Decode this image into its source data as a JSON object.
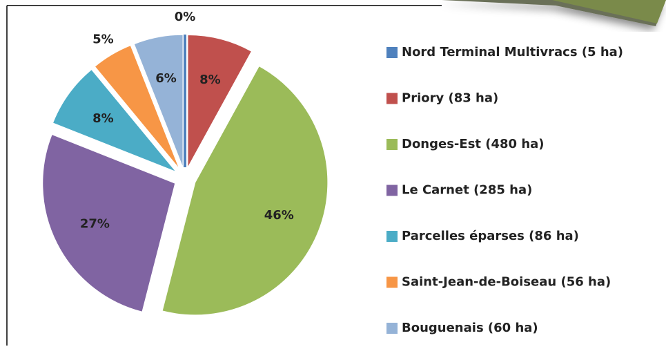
{
  "chart_data": {
    "type": "pie",
    "categories": [
      "Nord Terminal Multivracs (5 ha)",
      "Priory (83 ha)",
      "Donges-Est (480 ha)",
      "Le Carnet (285 ha)",
      "Parcelles éparses (86 ha)",
      "Saint-Jean-de-Boiseau (56 ha)",
      "Bouguenais (60 ha)"
    ],
    "values": [
      0,
      8,
      46,
      27,
      8,
      5,
      6
    ],
    "value_labels": [
      "0%",
      "8%",
      "46%",
      "27%",
      "8%",
      "5%",
      "6%"
    ],
    "colors": [
      "#4f81bd",
      "#c0504d",
      "#9bbb59",
      "#8064a2",
      "#4bacc6",
      "#f79646",
      "#95b3d7"
    ],
    "legend": "right"
  }
}
